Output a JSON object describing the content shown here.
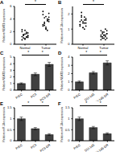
{
  "chart_data": [
    {
      "type": "scatter",
      "title": "A",
      "y_label": "Relative NEAT1 expression",
      "categories": [
        "Normal",
        "Tumor"
      ],
      "values": [
        [
          1.2,
          1.5,
          0.8,
          1.9,
          1.1,
          2.3,
          1.4,
          0.9,
          1.7,
          1.3,
          2.0,
          1.0,
          1.6,
          1.2,
          1.8,
          0.7,
          1.5,
          2.2,
          1.1,
          1.4
        ],
        [
          3.1,
          4.2,
          2.5,
          3.8,
          4.9,
          2.9,
          3.5,
          4.4,
          2.2,
          3.9,
          5.2,
          3.3,
          2.7,
          4.0,
          3.6,
          4.7,
          3.0,
          2.4,
          3.7,
          4.3
        ]
      ],
      "color": "#000000",
      "ylim": [
        0,
        6
      ],
      "yticks": [
        0,
        2,
        4,
        6
      ],
      "annotations": [
        "*"
      ]
    },
    {
      "type": "scatter",
      "title": "B",
      "y_label": "Relative miR-34a expression",
      "categories": [
        "Normal",
        "Tumor"
      ],
      "values": [
        [
          1.3,
          1.6,
          1.1,
          1.8,
          1.4,
          1.2,
          1.9,
          1.5,
          1.0,
          1.7,
          1.3,
          2.1,
          1.4,
          1.6,
          1.2,
          1.5,
          1.8,
          1.1,
          1.4,
          1.6
        ],
        [
          0.6,
          0.4,
          0.8,
          0.5,
          0.9,
          0.3,
          0.7,
          0.6,
          1.0,
          0.4,
          0.5,
          0.8,
          0.6,
          0.3,
          0.7,
          0.9,
          0.5,
          0.4,
          0.6,
          0.7
        ]
      ],
      "color": "#000000",
      "ylim": [
        0,
        2.5
      ],
      "yticks": [
        0,
        1,
        2
      ],
      "annotations": [
        "*"
      ]
    },
    {
      "type": "bar",
      "title": "C",
      "y_label": "Relative NEAT1 expression",
      "categories": [
        "PrEC",
        "PC3",
        "PC3-DR"
      ],
      "values": [
        1,
        2.4,
        3.9
      ],
      "errors": [
        0.1,
        0.2,
        0.3
      ],
      "color": "#404040",
      "ylim": [
        0,
        5
      ],
      "yticks": [
        0,
        1,
        2,
        3,
        4,
        5
      ],
      "annotations": [
        "*",
        "*"
      ]
    },
    {
      "type": "bar",
      "title": "D",
      "y_label": "Relative NEAT1 expression",
      "categories": [
        "PrEC",
        "DU-145",
        "DU-145-DR"
      ],
      "values": [
        1,
        2.1,
        3.3
      ],
      "errors": [
        0.1,
        0.15,
        0.25
      ],
      "color": "#404040",
      "ylim": [
        0,
        4
      ],
      "yticks": [
        0,
        1,
        2,
        3,
        4
      ],
      "annotations": [
        "*",
        "*"
      ]
    },
    {
      "type": "bar",
      "title": "E",
      "y_label": "Relative miR-34a expression",
      "categories": [
        "PrEC",
        "PC3",
        "PC3-DR"
      ],
      "values": [
        1,
        0.55,
        0.28
      ],
      "errors": [
        0.08,
        0.05,
        0.04
      ],
      "color": "#404040",
      "ylim": [
        0,
        1.5
      ],
      "yticks": [
        0,
        0.5,
        1,
        1.5
      ],
      "annotations": [
        "*",
        "*"
      ]
    },
    {
      "type": "bar",
      "title": "F",
      "y_label": "Relative miR-34a expression",
      "categories": [
        "PrEC",
        "DU-145",
        "DU-145-DR"
      ],
      "values": [
        1,
        0.6,
        0.32
      ],
      "errors": [
        0.08,
        0.05,
        0.04
      ],
      "color": "#404040",
      "ylim": [
        0,
        1.5
      ],
      "yticks": [
        0,
        0.5,
        1,
        1.5
      ],
      "annotations": [
        "*",
        "*"
      ]
    }
  ]
}
